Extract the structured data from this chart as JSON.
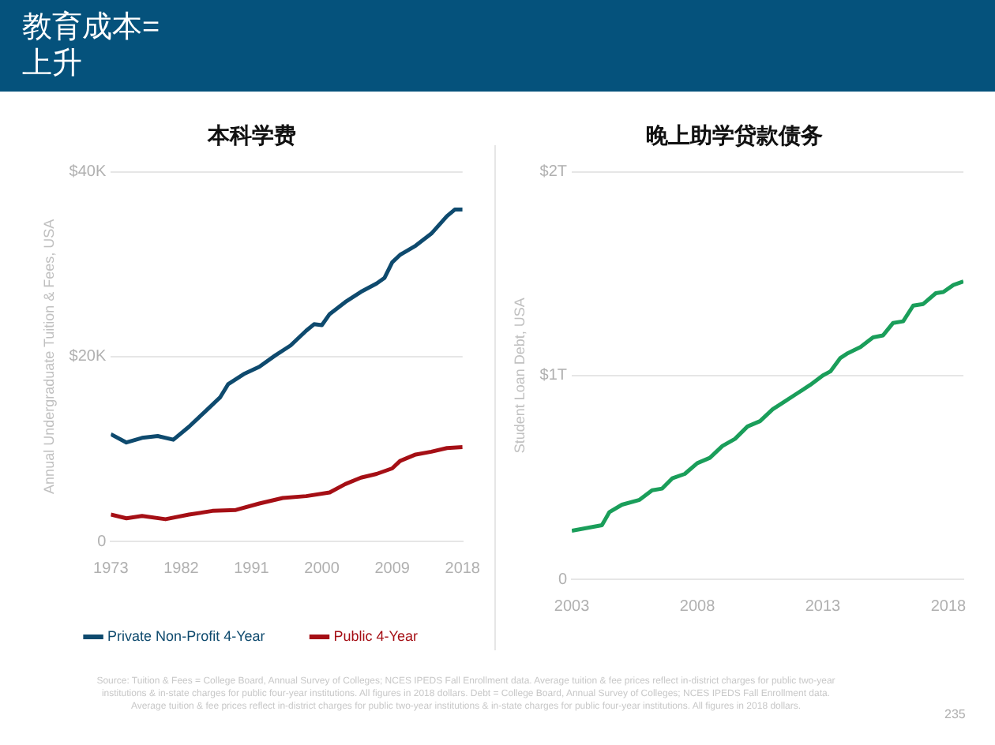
{
  "chart_data": [
    {
      "type": "line",
      "title": "本科学费",
      "ylabel": "Annual Undergraduate Tuition & Fees, USA",
      "xlim": [
        1973,
        2018
      ],
      "xticks": [
        1973,
        1982,
        1991,
        2000,
        2009,
        2018
      ],
      "ylim": [
        0,
        40000
      ],
      "yticks": [
        0,
        {
          "value": 20000,
          "label": "$20K"
        },
        {
          "value": 40000,
          "label": "$40K"
        }
      ],
      "grid": "y",
      "legend": "bottom",
      "marker": "none",
      "line_style": "solid",
      "annotations": [
        "教育成本=\n上升",
        "Source: Tuition & Fees = College Board, Annual Survey of Colleges; NCES IPEDS Fall Enrollment data. Average tuition & fee prices reflect in-district charges for public two-year institutions & in-state charges for public four-year institutions. All figures in 2018 dollars. Debt = College Board, Annual Survey of Colleges; NCES IPEDS Fall Enrollment data. Average tuition & fee prices reflect in-district charges for public two-year institutions & in-state charges for public four-year institutions. All figures in 2018 dollars."
      ],
      "series": [
        {
          "name": "Private Non-Profit 4-Year",
          "color": "#0e4a6e",
          "x": [
            1973,
            1975,
            1977,
            1979,
            1981,
            1983,
            1985,
            1987,
            1988,
            1990,
            1992,
            1994,
            1996,
            1998,
            1999,
            2000,
            2001,
            2003,
            2005,
            2007,
            2008,
            2009,
            2010,
            2012,
            2014,
            2016,
            2017,
            2018
          ],
          "values": [
            11600,
            10700,
            11200,
            11400,
            11000,
            12400,
            14000,
            15600,
            17000,
            18100,
            18900,
            20100,
            21200,
            22800,
            23500,
            23400,
            24600,
            25900,
            27000,
            27900,
            28500,
            30200,
            31000,
            32000,
            33300,
            35200,
            35900,
            35900
          ]
        },
        {
          "name": "Public 4-Year",
          "color": "#a50f15",
          "x": [
            1973,
            1975,
            1977,
            1980,
            1983,
            1986,
            1989,
            1992,
            1995,
            1998,
            2001,
            2003,
            2005,
            2007,
            2009,
            2010,
            2012,
            2014,
            2016,
            2018
          ],
          "values": [
            2900,
            2500,
            2750,
            2400,
            2900,
            3300,
            3400,
            4100,
            4700,
            4900,
            5300,
            6200,
            6900,
            7300,
            7900,
            8700,
            9400,
            9700,
            10100,
            10200
          ]
        }
      ]
    },
    {
      "type": "line",
      "title": "晚上助学贷款债务",
      "ylabel": "Student Loan Debt, USA",
      "xlim": [
        2003,
        2018.6
      ],
      "xticks": [
        2003,
        2008,
        2013,
        2018
      ],
      "ylim": [
        0,
        2
      ],
      "yticks": [
        0,
        {
          "value": 1,
          "label": "$1T"
        },
        {
          "value": 2,
          "label": "$2T"
        }
      ],
      "grid": "y",
      "marker": "none",
      "line_style": "solid",
      "annotations": [
        "235"
      ],
      "series": [
        {
          "color": "#1a9e5a",
          "x": [
            2003,
            2004.2,
            2004.5,
            2005,
            2005.7,
            2006.2,
            2006.6,
            2007,
            2007.5,
            2008,
            2008.5,
            2009,
            2009.5,
            2010,
            2010.5,
            2011,
            2011.5,
            2012,
            2012.5,
            2013,
            2013.3,
            2013.7,
            2014,
            2014.5,
            2015,
            2015.4,
            2015.8,
            2016.2,
            2016.6,
            2017,
            2017.5,
            2017.8,
            2018.2,
            2018.6
          ],
          "values": [
            0.238,
            0.265,
            0.33,
            0.366,
            0.39,
            0.437,
            0.445,
            0.495,
            0.517,
            0.57,
            0.596,
            0.654,
            0.689,
            0.75,
            0.776,
            0.834,
            0.874,
            0.914,
            0.954,
            1.0,
            1.02,
            1.086,
            1.11,
            1.14,
            1.187,
            1.197,
            1.258,
            1.266,
            1.343,
            1.351,
            1.404,
            1.41,
            1.444,
            1.462
          ]
        }
      ]
    }
  ]
}
